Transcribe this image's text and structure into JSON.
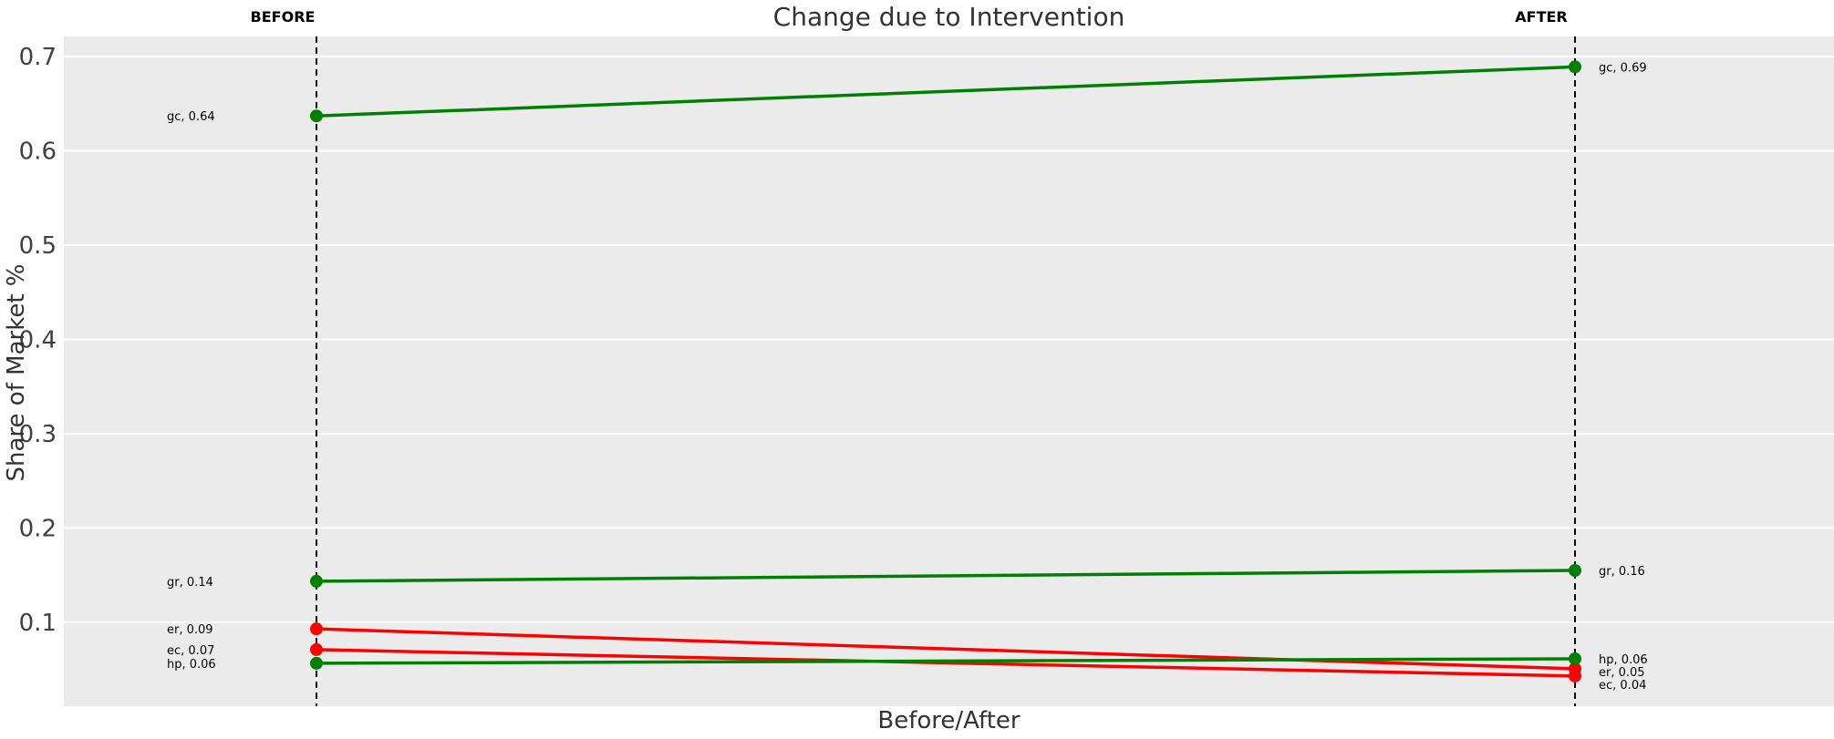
{
  "title": "Change due to Intervention",
  "chart_data": {
    "type": "line",
    "subtype": "slopegraph",
    "title": "Change due to Intervention",
    "xlabel": "Before/After",
    "ylabel": "Share of Market %",
    "columns": [
      {
        "label": "BEFORE"
      },
      {
        "label": "AFTER"
      }
    ],
    "yticks": [
      0.1,
      0.2,
      0.3,
      0.4,
      0.5,
      0.6,
      0.7
    ],
    "ylim": [
      0.011,
      0.7213
    ],
    "grid": true,
    "legend": "none",
    "plot_bg": "#ebebeb",
    "grid_color": "#ffffff",
    "guide_line_color": "#000000",
    "up_color": "#008000",
    "down_color": "#ff0000",
    "series": [
      {
        "name": "gc",
        "before": 0.637,
        "after": 0.689,
        "trend": "up",
        "label_before": "gc, 0.64",
        "label_after": "gc, 0.69"
      },
      {
        "name": "gr",
        "before": 0.1435,
        "after": 0.155,
        "trend": "up",
        "label_before": "gr, 0.14",
        "label_after": "gr, 0.16"
      },
      {
        "name": "er",
        "before": 0.093,
        "after": 0.0507,
        "trend": "down",
        "label_before": "er, 0.09",
        "label_after": "er, 0.05"
      },
      {
        "name": "ec",
        "before": 0.071,
        "after": 0.043,
        "trend": "down",
        "label_before": "ec, 0.07",
        "label_after": "ec, 0.04"
      },
      {
        "name": "hp",
        "before": 0.0565,
        "after": 0.0613,
        "trend": "up",
        "label_before": "hp, 0.06",
        "label_after": "hp, 0.06"
      }
    ]
  }
}
